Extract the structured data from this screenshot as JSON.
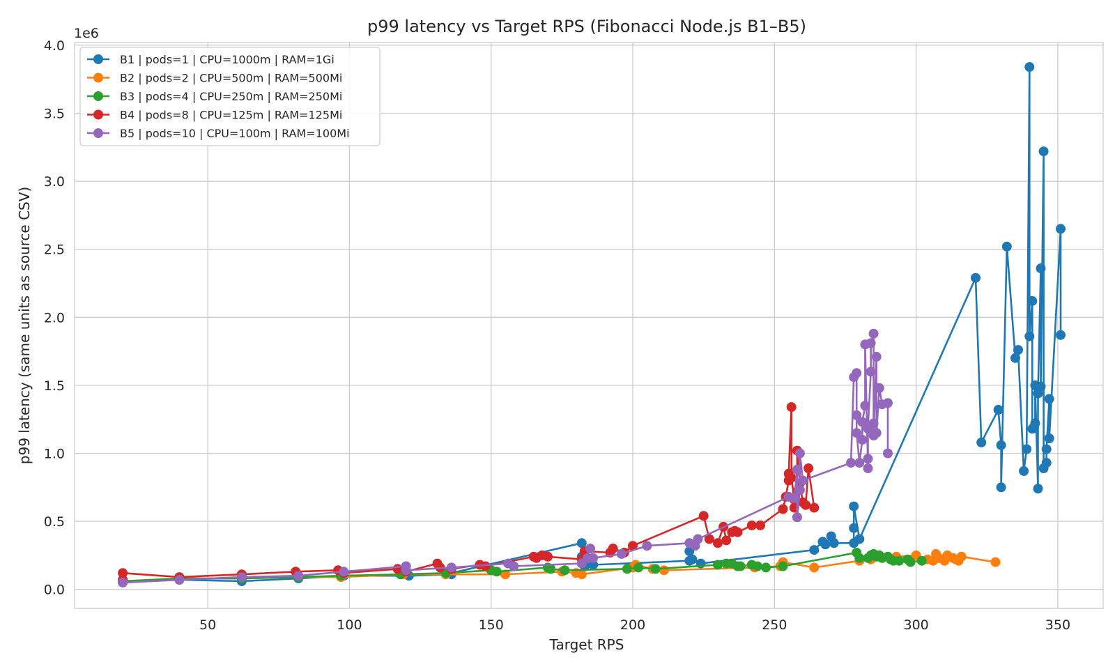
{
  "chart_data": {
    "type": "line",
    "title": "p99 latency vs Target RPS (Fibonacci Node.js B1–B5)",
    "xlabel": "Target RPS",
    "ylabel": "p99 latency (same units as source CSV)",
    "y_multiplier_label": "1e6",
    "xlim": [
      3,
      366
    ],
    "ylim": [
      -0.14,
      4.02
    ],
    "xticks": [
      50,
      100,
      150,
      200,
      250,
      300,
      350
    ],
    "xtick_labels": [
      "50",
      "100",
      "150",
      "200",
      "250",
      "300",
      "350"
    ],
    "yticks": [
      0,
      0.5,
      1,
      1.5,
      2,
      2.5,
      3,
      3.5,
      4
    ],
    "ytick_labels": [
      "0.0",
      "0.5",
      "1.0",
      "1.5",
      "2.0",
      "2.5",
      "3.0",
      "3.5",
      "4.0"
    ],
    "grid": true,
    "legend_position": "top-left",
    "series": [
      {
        "name": "B1 | pods=1 | CPU=1000m | RAM=1Gi",
        "color": "#1f77b4",
        "points": [
          [
            20,
            0.05
          ],
          [
            40,
            0.07
          ],
          [
            62,
            0.06
          ],
          [
            82,
            0.08
          ],
          [
            98,
            0.1
          ],
          [
            121,
            0.1
          ],
          [
            136,
            0.11
          ],
          [
            136,
            0.12
          ],
          [
            182,
            0.34
          ],
          [
            182,
            0.24
          ],
          [
            183,
            0.17
          ],
          [
            186,
            0.18
          ],
          [
            220,
            0.21
          ],
          [
            220,
            0.28
          ],
          [
            221,
            0.22
          ],
          [
            224,
            0.19
          ],
          [
            264,
            0.29
          ],
          [
            267,
            0.35
          ],
          [
            268,
            0.33
          ],
          [
            270,
            0.39
          ],
          [
            271,
            0.34
          ],
          [
            278,
            0.34
          ],
          [
            278,
            0.45
          ],
          [
            278,
            0.61
          ],
          [
            280,
            0.37
          ],
          [
            321,
            2.29
          ],
          [
            323,
            1.08
          ],
          [
            329,
            1.32
          ],
          [
            330,
            1.06
          ],
          [
            330,
            0.75
          ],
          [
            332,
            2.52
          ],
          [
            335,
            1.7
          ],
          [
            336,
            1.76
          ],
          [
            338,
            0.87
          ],
          [
            339,
            1.03
          ],
          [
            340,
            3.84
          ],
          [
            340,
            1.86
          ],
          [
            341,
            2.12
          ],
          [
            341,
            1.18
          ],
          [
            342,
            1.22
          ],
          [
            342,
            1.5
          ],
          [
            343,
            0.74
          ],
          [
            343,
            1.44
          ],
          [
            344,
            2.36
          ],
          [
            344,
            1.49
          ],
          [
            345,
            3.22
          ],
          [
            345,
            0.89
          ],
          [
            346,
            0.93
          ],
          [
            346,
            1.03
          ],
          [
            347,
            1.4
          ],
          [
            347,
            1.11
          ],
          [
            351,
            2.65
          ],
          [
            351,
            1.87
          ]
        ]
      },
      {
        "name": "B2 | pods=2 | CPU=500m | RAM=500Mi",
        "color": "#ff7f0e",
        "points": [
          [
            20,
            0.06
          ],
          [
            40,
            0.08
          ],
          [
            62,
            0.08
          ],
          [
            82,
            0.09
          ],
          [
            97,
            0.09
          ],
          [
            119,
            0.11
          ],
          [
            134,
            0.11
          ],
          [
            155,
            0.11
          ],
          [
            175,
            0.13
          ],
          [
            180,
            0.12
          ],
          [
            182,
            0.11
          ],
          [
            200,
            0.16
          ],
          [
            201,
            0.18
          ],
          [
            207,
            0.15
          ],
          [
            211,
            0.14
          ],
          [
            243,
            0.16
          ],
          [
            252,
            0.17
          ],
          [
            253,
            0.2
          ],
          [
            264,
            0.16
          ],
          [
            280,
            0.21
          ],
          [
            284,
            0.22
          ],
          [
            293,
            0.24
          ],
          [
            300,
            0.25
          ],
          [
            304,
            0.22
          ],
          [
            306,
            0.21
          ],
          [
            307,
            0.26
          ],
          [
            308,
            0.23
          ],
          [
            310,
            0.21
          ],
          [
            311,
            0.25
          ],
          [
            313,
            0.23
          ],
          [
            314,
            0.22
          ],
          [
            315,
            0.21
          ],
          [
            316,
            0.24
          ],
          [
            328,
            0.2
          ]
        ]
      },
      {
        "name": "B3 | pods=4 | CPU=250m | RAM=250Mi",
        "color": "#2ca02c",
        "points": [
          [
            20,
            0.06
          ],
          [
            40,
            0.08
          ],
          [
            62,
            0.08
          ],
          [
            82,
            0.09
          ],
          [
            97,
            0.1
          ],
          [
            118,
            0.11
          ],
          [
            134,
            0.12
          ],
          [
            150,
            0.14
          ],
          [
            152,
            0.13
          ],
          [
            170,
            0.16
          ],
          [
            171,
            0.15
          ],
          [
            176,
            0.14
          ],
          [
            198,
            0.15
          ],
          [
            202,
            0.16
          ],
          [
            208,
            0.15
          ],
          [
            230,
            0.18
          ],
          [
            233,
            0.19
          ],
          [
            235,
            0.19
          ],
          [
            237,
            0.17
          ],
          [
            238,
            0.17
          ],
          [
            242,
            0.18
          ],
          [
            244,
            0.17
          ],
          [
            247,
            0.16
          ],
          [
            253,
            0.17
          ],
          [
            279,
            0.27
          ],
          [
            280,
            0.23
          ],
          [
            283,
            0.23
          ],
          [
            284,
            0.25
          ],
          [
            285,
            0.26
          ],
          [
            286,
            0.24
          ],
          [
            287,
            0.25
          ],
          [
            288,
            0.23
          ],
          [
            290,
            0.24
          ],
          [
            291,
            0.22
          ],
          [
            292,
            0.21
          ],
          [
            294,
            0.21
          ],
          [
            297,
            0.22
          ],
          [
            298,
            0.2
          ],
          [
            302,
            0.21
          ]
        ]
      },
      {
        "name": "B4 | pods=8 | CPU=125m | RAM=125Mi",
        "color": "#d62728",
        "points": [
          [
            20,
            0.07
          ],
          [
            20,
            0.12
          ],
          [
            40,
            0.09
          ],
          [
            62,
            0.11
          ],
          [
            81,
            0.13
          ],
          [
            96,
            0.14
          ],
          [
            98,
            0.12
          ],
          [
            117,
            0.15
          ],
          [
            120,
            0.13
          ],
          [
            131,
            0.19
          ],
          [
            132,
            0.16
          ],
          [
            136,
            0.15
          ],
          [
            146,
            0.18
          ],
          [
            148,
            0.17
          ],
          [
            165,
            0.24
          ],
          [
            166,
            0.23
          ],
          [
            168,
            0.25
          ],
          [
            170,
            0.24
          ],
          [
            182,
            0.22
          ],
          [
            183,
            0.28
          ],
          [
            192,
            0.27
          ],
          [
            193,
            0.3
          ],
          [
            197,
            0.27
          ],
          [
            200,
            0.32
          ],
          [
            225,
            0.54
          ],
          [
            227,
            0.37
          ],
          [
            230,
            0.34
          ],
          [
            232,
            0.46
          ],
          [
            233,
            0.36
          ],
          [
            235,
            0.42
          ],
          [
            236,
            0.43
          ],
          [
            237,
            0.42
          ],
          [
            242,
            0.47
          ],
          [
            245,
            0.47
          ],
          [
            253,
            0.59
          ],
          [
            254,
            0.68
          ],
          [
            255,
            0.8
          ],
          [
            255,
            0.85
          ],
          [
            256,
            1.34
          ],
          [
            256,
            0.82
          ],
          [
            257,
            0.66
          ],
          [
            257,
            0.6
          ],
          [
            258,
            0.72
          ],
          [
            258,
            1.02
          ],
          [
            259,
            0.78
          ],
          [
            260,
            0.64
          ],
          [
            261,
            0.62
          ],
          [
            262,
            0.89
          ],
          [
            264,
            0.6
          ]
        ]
      },
      {
        "name": "B5 | pods=10 | CPU=100m | RAM=100Mi",
        "color": "#9467bd",
        "points": [
          [
            20,
            0.05
          ],
          [
            40,
            0.07
          ],
          [
            62,
            0.09
          ],
          [
            82,
            0.1
          ],
          [
            98,
            0.13
          ],
          [
            120,
            0.17
          ],
          [
            120,
            0.14
          ],
          [
            136,
            0.16
          ],
          [
            156,
            0.19
          ],
          [
            158,
            0.17
          ],
          [
            182,
            0.19
          ],
          [
            184,
            0.23
          ],
          [
            185,
            0.3
          ],
          [
            186,
            0.23
          ],
          [
            196,
            0.26
          ],
          [
            205,
            0.32
          ],
          [
            220,
            0.34
          ],
          [
            222,
            0.32
          ],
          [
            223,
            0.37
          ],
          [
            255,
            0.68
          ],
          [
            257,
            0.67
          ],
          [
            258,
            0.88
          ],
          [
            258,
            0.53
          ],
          [
            259,
            0.73
          ],
          [
            259,
            1.0
          ],
          [
            260,
            0.8
          ],
          [
            277,
            0.93
          ],
          [
            278,
            1.56
          ],
          [
            279,
            1.59
          ],
          [
            279,
            1.28
          ],
          [
            279,
            1.15
          ],
          [
            280,
            0.93
          ],
          [
            281,
            1.1
          ],
          [
            281,
            1.23
          ],
          [
            282,
            1.35
          ],
          [
            282,
            1.8
          ],
          [
            283,
            0.89
          ],
          [
            283,
            0.96
          ],
          [
            283,
            1.18
          ],
          [
            284,
            1.6
          ],
          [
            284,
            1.81
          ],
          [
            285,
            1.88
          ],
          [
            285,
            1.22
          ],
          [
            285,
            1.13
          ],
          [
            286,
            1.71
          ],
          [
            286,
            1.15
          ],
          [
            287,
            1.48
          ],
          [
            288,
            1.36
          ],
          [
            290,
            1.37
          ],
          [
            290,
            1.0
          ]
        ]
      }
    ]
  }
}
